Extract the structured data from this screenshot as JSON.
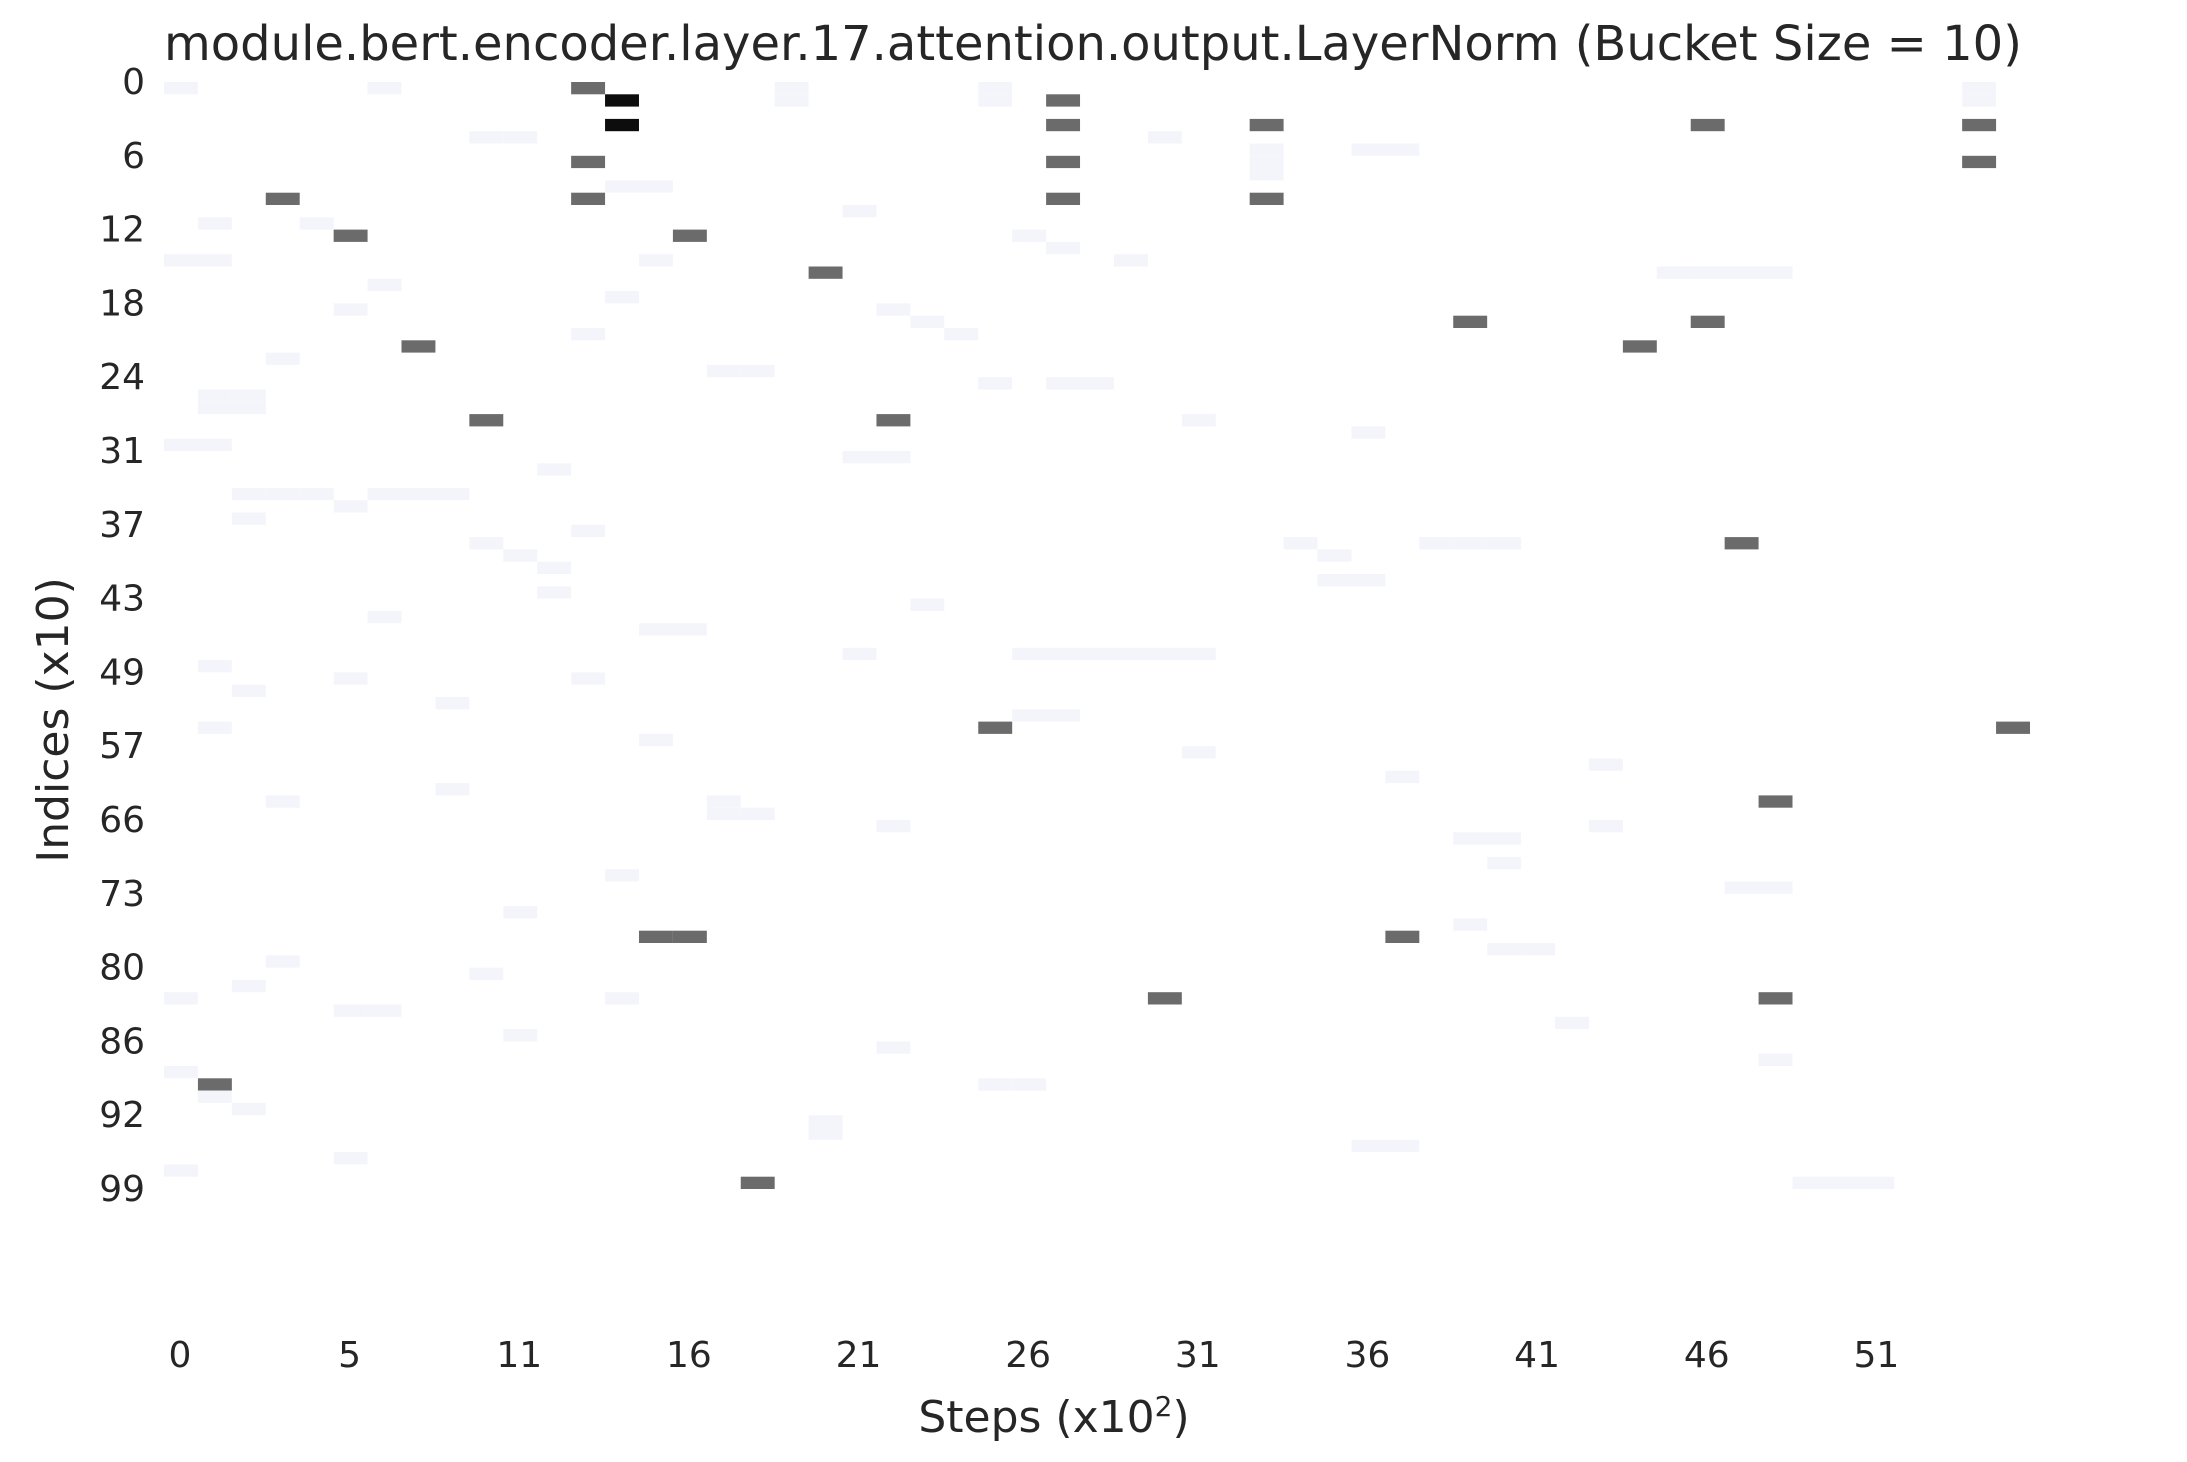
{
  "chart_data": {
    "type": "heatmap",
    "title": "module.bert.encoder.layer.17.attention.output.LayerNorm (Bucket Size = 10)",
    "xlabel": "Steps (x10",
    "xlabel_sup": "2",
    "xlabel_end": ")",
    "ylabel": "Indices (x10)",
    "n_cols": 55,
    "n_rows": 100,
    "xticks": [
      {
        "col": 0,
        "label": "0"
      },
      {
        "col": 5,
        "label": "5"
      },
      {
        "col": 10,
        "label": "11"
      },
      {
        "col": 15,
        "label": "16"
      },
      {
        "col": 20,
        "label": "21"
      },
      {
        "col": 25,
        "label": "26"
      },
      {
        "col": 30,
        "label": "31"
      },
      {
        "col": 35,
        "label": "36"
      },
      {
        "col": 40,
        "label": "41"
      },
      {
        "col": 45,
        "label": "46"
      },
      {
        "col": 50,
        "label": "51"
      }
    ],
    "yticks": [
      {
        "row": 0,
        "label": "0"
      },
      {
        "row": 6,
        "label": "6"
      },
      {
        "row": 12,
        "label": "12"
      },
      {
        "row": 18,
        "label": "18"
      },
      {
        "row": 24,
        "label": "24"
      },
      {
        "row": 30,
        "label": "31"
      },
      {
        "row": 36,
        "label": "37"
      },
      {
        "row": 42,
        "label": "43"
      },
      {
        "row": 48,
        "label": "49"
      },
      {
        "row": 54,
        "label": "57"
      },
      {
        "row": 60,
        "label": "66"
      },
      {
        "row": 66,
        "label": "73"
      },
      {
        "row": 72,
        "label": "80"
      },
      {
        "row": 78,
        "label": "86"
      },
      {
        "row": 84,
        "label": "92"
      },
      {
        "row": 90,
        "label": "99"
      }
    ],
    "colors": {
      "low": "#ffffff",
      "faint": "#f4f5fb",
      "mid": "#6b6b6b",
      "high": "#0d0d0d"
    },
    "cells": [
      [
        0,
        12,
        2
      ],
      [
        1,
        13,
        3
      ],
      [
        3,
        13,
        3
      ],
      [
        1,
        26,
        2
      ],
      [
        3,
        45,
        2
      ],
      [
        6,
        12,
        2
      ],
      [
        6,
        26,
        2
      ],
      [
        6,
        53,
        2
      ],
      [
        3,
        53,
        2
      ],
      [
        9,
        3,
        2
      ],
      [
        9,
        12,
        2
      ],
      [
        9,
        26,
        2
      ],
      [
        9,
        32,
        2
      ],
      [
        3,
        26,
        2
      ],
      [
        3,
        32,
        2
      ],
      [
        12,
        5,
        2
      ],
      [
        12,
        15,
        2
      ],
      [
        15,
        19,
        2
      ],
      [
        19,
        38,
        2
      ],
      [
        19,
        45,
        2
      ],
      [
        21,
        7,
        2
      ],
      [
        21,
        43,
        2
      ],
      [
        27,
        9,
        2
      ],
      [
        27,
        21,
        2
      ],
      [
        37,
        46,
        2
      ],
      [
        52,
        24,
        2
      ],
      [
        52,
        54,
        2
      ],
      [
        58,
        47,
        2
      ],
      [
        69,
        14,
        2
      ],
      [
        69,
        15,
        2
      ],
      [
        69,
        36,
        2
      ],
      [
        74,
        29,
        2
      ],
      [
        74,
        47,
        2
      ],
      [
        81,
        1,
        2
      ],
      [
        89,
        17,
        2
      ],
      [
        0,
        0,
        1
      ],
      [
        0,
        6,
        1
      ],
      [
        1,
        18,
        1
      ],
      [
        0,
        18,
        1
      ],
      [
        0,
        24,
        1
      ],
      [
        1,
        24,
        1
      ],
      [
        0,
        53,
        1
      ],
      [
        1,
        53,
        1
      ],
      [
        4,
        9,
        1
      ],
      [
        4,
        10,
        1
      ],
      [
        4,
        29,
        1
      ],
      [
        5,
        32,
        1
      ],
      [
        6,
        32,
        1
      ],
      [
        7,
        32,
        1
      ],
      [
        5,
        35,
        1
      ],
      [
        5,
        36,
        1
      ],
      [
        8,
        13,
        1
      ],
      [
        8,
        14,
        1
      ],
      [
        10,
        20,
        1
      ],
      [
        11,
        1,
        1
      ],
      [
        11,
        4,
        1
      ],
      [
        12,
        25,
        1
      ],
      [
        13,
        26,
        1
      ],
      [
        14,
        14,
        1
      ],
      [
        14,
        0,
        1
      ],
      [
        14,
        1,
        1
      ],
      [
        14,
        28,
        1
      ],
      [
        15,
        44,
        1
      ],
      [
        15,
        45,
        1
      ],
      [
        15,
        46,
        1
      ],
      [
        15,
        47,
        1
      ],
      [
        16,
        6,
        1
      ],
      [
        17,
        13,
        1
      ],
      [
        18,
        5,
        1
      ],
      [
        18,
        21,
        1
      ],
      [
        19,
        22,
        1
      ],
      [
        20,
        12,
        1
      ],
      [
        20,
        23,
        1
      ],
      [
        22,
        3,
        1
      ],
      [
        23,
        16,
        1
      ],
      [
        23,
        17,
        1
      ],
      [
        24,
        24,
        1
      ],
      [
        24,
        26,
        1
      ],
      [
        24,
        27,
        1
      ],
      [
        25,
        1,
        1
      ],
      [
        25,
        2,
        1
      ],
      [
        26,
        1,
        1
      ],
      [
        26,
        2,
        1
      ],
      [
        27,
        30,
        1
      ],
      [
        28,
        35,
        1
      ],
      [
        29,
        0,
        1
      ],
      [
        29,
        1,
        1
      ],
      [
        30,
        20,
        1
      ],
      [
        30,
        21,
        1
      ],
      [
        31,
        11,
        1
      ],
      [
        33,
        2,
        1
      ],
      [
        33,
        3,
        1
      ],
      [
        33,
        4,
        1
      ],
      [
        33,
        6,
        1
      ],
      [
        33,
        7,
        1
      ],
      [
        33,
        8,
        1
      ],
      [
        34,
        5,
        1
      ],
      [
        35,
        2,
        1
      ],
      [
        36,
        12,
        1
      ],
      [
        37,
        9,
        1
      ],
      [
        37,
        33,
        1
      ],
      [
        37,
        37,
        1
      ],
      [
        37,
        38,
        1
      ],
      [
        37,
        39,
        1
      ],
      [
        38,
        10,
        1
      ],
      [
        38,
        34,
        1
      ],
      [
        39,
        11,
        1
      ],
      [
        40,
        34,
        1
      ],
      [
        40,
        35,
        1
      ],
      [
        41,
        11,
        1
      ],
      [
        42,
        22,
        1
      ],
      [
        43,
        6,
        1
      ],
      [
        44,
        14,
        1
      ],
      [
        44,
        15,
        1
      ],
      [
        46,
        20,
        1
      ],
      [
        46,
        25,
        1
      ],
      [
        46,
        26,
        1
      ],
      [
        46,
        27,
        1
      ],
      [
        46,
        28,
        1
      ],
      [
        46,
        29,
        1
      ],
      [
        46,
        30,
        1
      ],
      [
        47,
        1,
        1
      ],
      [
        48,
        5,
        1
      ],
      [
        48,
        12,
        1
      ],
      [
        49,
        2,
        1
      ],
      [
        50,
        8,
        1
      ],
      [
        51,
        25,
        1
      ],
      [
        51,
        26,
        1
      ],
      [
        52,
        1,
        1
      ],
      [
        53,
        14,
        1
      ],
      [
        54,
        30,
        1
      ],
      [
        55,
        42,
        1
      ],
      [
        56,
        36,
        1
      ],
      [
        57,
        8,
        1
      ],
      [
        58,
        3,
        1
      ],
      [
        58,
        16,
        1
      ],
      [
        59,
        16,
        1
      ],
      [
        59,
        17,
        1
      ],
      [
        60,
        21,
        1
      ],
      [
        60,
        42,
        1
      ],
      [
        61,
        38,
        1
      ],
      [
        61,
        39,
        1
      ],
      [
        63,
        39,
        1
      ],
      [
        64,
        13,
        1
      ],
      [
        65,
        46,
        1
      ],
      [
        65,
        47,
        1
      ],
      [
        67,
        10,
        1
      ],
      [
        68,
        38,
        1
      ],
      [
        70,
        39,
        1
      ],
      [
        70,
        40,
        1
      ],
      [
        71,
        3,
        1
      ],
      [
        72,
        9,
        1
      ],
      [
        73,
        2,
        1
      ],
      [
        74,
        0,
        1
      ],
      [
        74,
        13,
        1
      ],
      [
        75,
        5,
        1
      ],
      [
        75,
        6,
        1
      ],
      [
        76,
        41,
        1
      ],
      [
        77,
        10,
        1
      ],
      [
        78,
        21,
        1
      ],
      [
        79,
        47,
        1
      ],
      [
        80,
        0,
        1
      ],
      [
        81,
        24,
        1
      ],
      [
        81,
        25,
        1
      ],
      [
        82,
        1,
        1
      ],
      [
        83,
        2,
        1
      ],
      [
        84,
        19,
        1
      ],
      [
        85,
        19,
        1
      ],
      [
        86,
        35,
        1
      ],
      [
        86,
        36,
        1
      ],
      [
        87,
        5,
        1
      ],
      [
        88,
        0,
        1
      ],
      [
        89,
        48,
        1
      ],
      [
        89,
        49,
        1
      ],
      [
        89,
        50,
        1
      ]
    ]
  }
}
